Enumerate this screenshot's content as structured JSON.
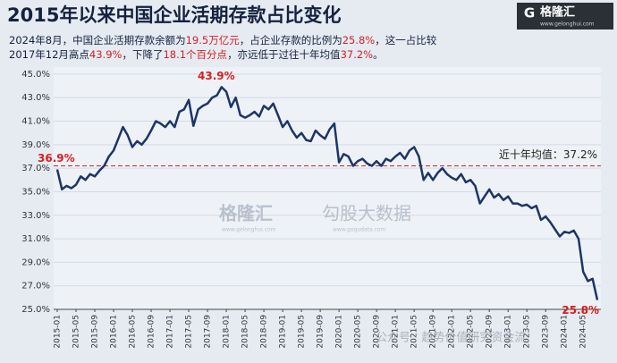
{
  "chart_data": {
    "type": "line",
    "title": "2015年以来中国企业活期存款占比变化",
    "subtitle_lines": [
      [
        "2024年8月，中国企业活期存款余额为",
        "19.5万亿元",
        "，占企业存款的比例为",
        "25.8%",
        "，这一占比较"
      ],
      [
        "2017年12月高点",
        "43.9%",
        "，下降了",
        "18.1个百分点",
        "，亦远低于过往十年均值",
        "37.2%",
        "。"
      ]
    ],
    "highlight_color": "#d42020",
    "logo": {
      "mark": "G",
      "name": "格隆汇",
      "url": "www.gelonghui.com"
    },
    "watermarks": {
      "brand": "格隆汇",
      "brand_url": "www.gelonghui.com",
      "data": "勾股大数据",
      "data_url": "www.gogudata.com",
      "account": "公众号 · 趋势价值研究资金流"
    },
    "categories": [
      "2015-01",
      null,
      null,
      null,
      "2015-05",
      null,
      null,
      null,
      "2015-09",
      null,
      null,
      null,
      "2016-01",
      null,
      null,
      null,
      "2016-05",
      null,
      null,
      null,
      "2016-09",
      null,
      null,
      null,
      "2017-01",
      null,
      null,
      null,
      "2017-05",
      null,
      null,
      null,
      "2017-09",
      null,
      null,
      null,
      "2018-01",
      null,
      null,
      null,
      "2018-05",
      null,
      null,
      null,
      "2018-09",
      null,
      null,
      null,
      "2019-01",
      null,
      null,
      null,
      "2019-05",
      null,
      null,
      null,
      "2019-09",
      null,
      null,
      null,
      "2020-01",
      null,
      null,
      null,
      "2020-05",
      null,
      null,
      null,
      "2020-09",
      null,
      null,
      null,
      "2021-01",
      null,
      null,
      null,
      "2021-05",
      null,
      null,
      null,
      "2021-09",
      null,
      null,
      null,
      "2022-01",
      null,
      null,
      null,
      "2022-05",
      null,
      null,
      null,
      "2022-09",
      null,
      null,
      null,
      "2023-01",
      null,
      null,
      null,
      "2023-05",
      null,
      null,
      null,
      "2023-09",
      null,
      null,
      null,
      "2024-01",
      null,
      null,
      null,
      "2024-05",
      null,
      null,
      null
    ],
    "values": [
      36.9,
      35.2,
      35.5,
      35.3,
      35.6,
      36.3,
      36.0,
      36.5,
      36.3,
      36.8,
      37.2,
      38.0,
      38.5,
      39.5,
      40.5,
      39.8,
      38.8,
      39.3,
      39.0,
      39.5,
      40.2,
      41.0,
      40.8,
      40.5,
      41.0,
      40.5,
      41.8,
      42.0,
      42.8,
      40.6,
      42.0,
      42.3,
      42.5,
      43.0,
      43.2,
      43.9,
      43.5,
      42.2,
      43.0,
      41.5,
      41.3,
      41.5,
      41.8,
      41.4,
      42.3,
      42.0,
      42.5,
      41.5,
      40.5,
      41.0,
      40.2,
      39.6,
      40.0,
      39.4,
      39.3,
      40.2,
      39.8,
      39.5,
      40.3,
      40.8,
      37.5,
      38.2,
      38.0,
      37.2,
      37.6,
      37.8,
      37.4,
      37.2,
      37.6,
      37.2,
      37.8,
      37.6,
      38.0,
      38.3,
      37.8,
      38.5,
      38.8,
      38.0,
      36.0,
      36.6,
      36.0,
      36.6,
      37.0,
      36.5,
      36.2,
      36.0,
      36.5,
      35.8,
      36.0,
      35.5,
      34.0,
      34.6,
      35.2,
      34.5,
      34.8,
      34.3,
      34.6,
      34.0,
      34.0,
      33.8,
      33.9,
      33.6,
      33.8,
      32.6,
      32.9,
      32.4,
      31.8,
      31.2,
      31.6,
      31.5,
      31.7,
      31.0,
      28.2,
      27.4,
      27.6,
      25.8
    ],
    "value_labels": [
      "36.9%",
      null,
      null,
      null,
      null,
      null,
      null,
      null,
      null,
      null,
      null,
      null,
      null,
      null,
      null,
      null,
      null,
      null,
      null,
      null,
      null,
      null,
      null,
      null,
      null,
      null,
      null,
      null,
      null,
      null,
      null,
      null,
      null,
      null,
      null,
      "43.9%",
      null,
      null,
      null,
      null,
      null,
      null,
      null,
      null,
      null,
      null,
      null,
      null,
      null,
      null,
      null,
      null,
      null,
      null,
      null,
      null,
      null,
      null,
      null,
      null,
      null,
      null,
      null,
      null,
      null,
      null,
      null,
      null,
      null,
      null,
      null,
      null,
      null,
      null,
      null,
      null,
      null,
      null,
      null,
      null,
      null,
      null,
      null,
      null,
      null,
      null,
      null,
      null,
      null,
      null,
      null,
      null,
      null,
      null,
      null,
      null,
      null,
      null,
      null,
      null,
      null,
      null,
      null,
      null,
      null,
      null,
      null,
      null,
      null,
      null,
      null,
      null,
      null,
      null,
      null,
      "25.8%"
    ],
    "color": "#1c3568",
    "reference_line": {
      "value": 37.2,
      "label": "近十年均值：37.2%",
      "color": "#c62828"
    },
    "ylim": [
      25,
      45.6
    ],
    "yticks": [
      {
        "value": 25,
        "label": "25.0%"
      },
      {
        "value": 27,
        "label": "27.0%"
      },
      {
        "value": 29,
        "label": "29.0%"
      },
      {
        "value": 31,
        "label": "31.0%"
      },
      {
        "value": 33,
        "label": "33.0%"
      },
      {
        "value": 35,
        "label": "35.0%"
      },
      {
        "value": 37,
        "label": "37.0%"
      },
      {
        "value": 39,
        "label": "39.0%"
      },
      {
        "value": 41,
        "label": "41.0%"
      },
      {
        "value": 43,
        "label": "43.0%"
      },
      {
        "value": 45,
        "label": "45.0%"
      }
    ],
    "grid": true
  }
}
